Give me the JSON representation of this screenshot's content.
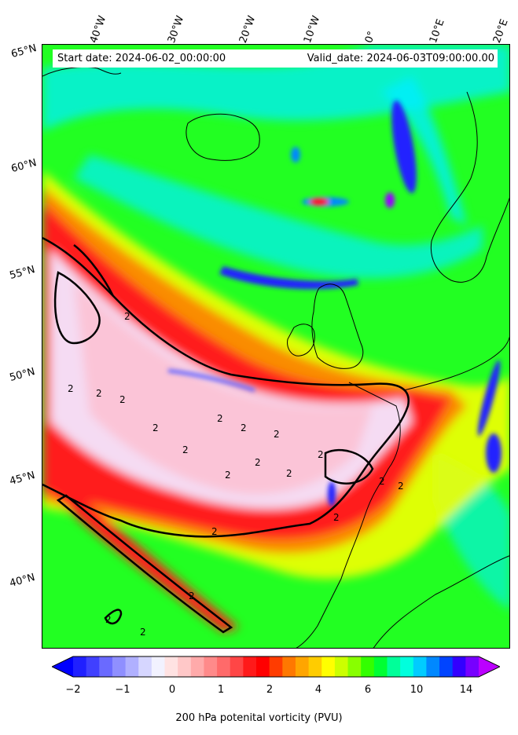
{
  "header": {
    "start_date": "Start date: 2024-06-02_00:00:00",
    "valid_date": "Valid_date: 2024-06-03T09:00:00.00"
  },
  "longitude_labels": [
    "40°W",
    "30°W",
    "20°W",
    "10°W",
    "0°",
    "10°E",
    "20°E"
  ],
  "latitude_labels": [
    "65°N",
    "60°N",
    "55°N",
    "50°N",
    "45°N",
    "40°N"
  ],
  "contour_labels": [
    "2",
    "2",
    "2",
    "2",
    "2",
    "2",
    "2",
    "2",
    "2",
    "2",
    "2",
    "2",
    "2",
    "2",
    "2",
    "2",
    "2",
    "2",
    "2",
    "2"
  ],
  "colorbar": {
    "title": "200 hPa potenital vorticity (PVU)",
    "ticks": [
      "−2",
      "−1",
      "0",
      "1",
      "2",
      "4",
      "6",
      "10",
      "14"
    ],
    "colors": [
      "#0000ff",
      "#2020ff",
      "#4040ff",
      "#6a6aff",
      "#8f8fff",
      "#b0b0ff",
      "#d6d6ff",
      "#f2f2ff",
      "#ffe2e2",
      "#ffc8c8",
      "#ffaaaa",
      "#ff8a8a",
      "#ff6a6a",
      "#ff4646",
      "#ff1a1a",
      "#ff0000",
      "#ff3c00",
      "#ff7800",
      "#ffa500",
      "#ffcc00",
      "#ffff00",
      "#ccff00",
      "#88ff00",
      "#33ff00",
      "#00ff33",
      "#00ff99",
      "#00ffdd",
      "#00ccff",
      "#0088ff",
      "#0044ff",
      "#3300ff",
      "#7700ff",
      "#bb00ff"
    ]
  },
  "map_colors": {
    "green": "#22ff22",
    "cyan": "#00eeff",
    "yellow": "#ffff00",
    "red": "#ff1a1a",
    "white": "#f4f4ff",
    "blue": "#2020ff",
    "purple": "#9900ff"
  }
}
